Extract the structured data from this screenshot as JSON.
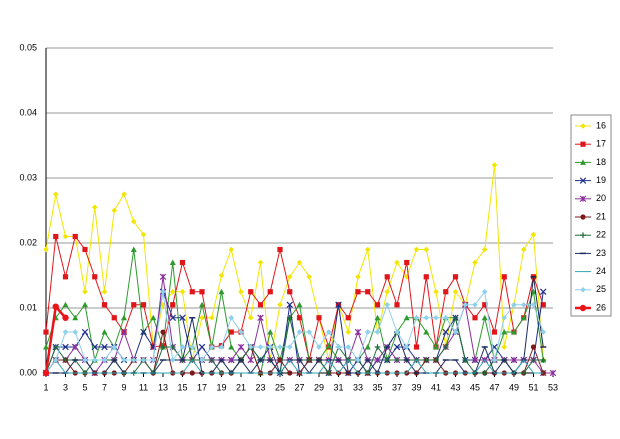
{
  "chart_data": {
    "type": "line",
    "x": [
      1,
      2,
      3,
      4,
      5,
      6,
      7,
      8,
      9,
      10,
      11,
      12,
      13,
      14,
      15,
      16,
      17,
      18,
      19,
      20,
      21,
      22,
      23,
      24,
      25,
      26,
      27,
      28,
      29,
      30,
      31,
      32,
      33,
      34,
      35,
      36,
      37,
      38,
      39,
      40,
      41,
      42,
      43,
      44,
      45,
      46,
      47,
      48,
      49,
      50,
      51,
      52,
      53
    ],
    "xlim": [
      1,
      53
    ],
    "xticks": [
      1,
      3,
      5,
      7,
      9,
      11,
      13,
      15,
      17,
      19,
      21,
      23,
      25,
      27,
      29,
      31,
      33,
      35,
      37,
      39,
      41,
      43,
      45,
      47,
      49,
      51,
      53
    ],
    "ylim": [
      0,
      0.05
    ],
    "yticks": [
      {
        "value": 0,
        "label": "0.00"
      },
      {
        "value": 0.01,
        "label": "0.01"
      },
      {
        "value": 0.02,
        "label": "0.02"
      },
      {
        "value": 0.03,
        "label": "0.03"
      },
      {
        "value": 0.04,
        "label": "0.04"
      },
      {
        "value": 0.05,
        "label": "0.05"
      }
    ],
    "grid": true,
    "legend": "right",
    "series": [
      {
        "name": "16",
        "color": "#f2e600",
        "marker": "diamond",
        "values": [
          0.019,
          0.0275,
          0.021,
          0.021,
          0.0125,
          0.0255,
          0.0125,
          0.025,
          0.0275,
          0.0233,
          0.0213,
          0.004,
          0.0105,
          0.0125,
          0.0125,
          0.002,
          0.0085,
          0.0085,
          0.015,
          0.019,
          0.0125,
          0.0085,
          0.017,
          0.002,
          0.0105,
          0.0148,
          0.017,
          0.0148,
          0.0085,
          0.002,
          0.0105,
          0.0063,
          0.0148,
          0.019,
          0.0063,
          0.0125,
          0.017,
          0.0148,
          0.019,
          0.019,
          0.0125,
          0.0042,
          0.0125,
          0.0105,
          0.017,
          0.019,
          0.032,
          0.004,
          0.0105,
          0.019,
          0.0213,
          0.002,
          null
        ]
      },
      {
        "name": "17",
        "color": "#e0161b",
        "marker": "square",
        "values": [
          0.0063,
          0.021,
          0.0148,
          0.021,
          0.019,
          0.0148,
          0.0105,
          0.0085,
          0.0063,
          0.0105,
          0.0105,
          0.004,
          0.0042,
          0.0105,
          0.017,
          0.0125,
          0.0125,
          0.004,
          0.0042,
          0.0063,
          0.0063,
          0.0125,
          0.0105,
          0.0125,
          0.019,
          0.0125,
          0.0085,
          0.002,
          0.0085,
          0.004,
          0.0105,
          0.0085,
          0.0125,
          0.0125,
          0.0105,
          0.0148,
          0.0105,
          0.017,
          0.004,
          0.0148,
          0.004,
          0.0125,
          0.0148,
          0.0105,
          0.0085,
          0.0105,
          0.0063,
          0.0148,
          0.0063,
          0.0085,
          0.0148,
          0.0105,
          null
        ]
      },
      {
        "name": "18",
        "color": "#2e9a2e",
        "marker": "triangle",
        "values": [
          0.004,
          0.0085,
          0.0105,
          0.0085,
          0.0105,
          0.002,
          0.0063,
          0.004,
          0.0085,
          0.019,
          0.0063,
          0.0085,
          0.004,
          0.017,
          0.002,
          0.004,
          0.0105,
          0.004,
          0.0125,
          0.004,
          0.002,
          0.004,
          0,
          0.0063,
          0.002,
          0.0085,
          0.0105,
          0.002,
          0.002,
          0.0042,
          0.002,
          0.002,
          0.002,
          0.004,
          0.0085,
          0.002,
          0.0063,
          0.0085,
          0.0085,
          0.0063,
          0.004,
          0.0085,
          0.0085,
          0.002,
          0.002,
          0.0085,
          0.002,
          0.0063,
          0.0063,
          0.0085,
          0.0125,
          0.002,
          null
        ]
      },
      {
        "name": "19",
        "color": "#1f2f8a",
        "marker": "x",
        "values": [
          0,
          0.004,
          0.004,
          0.004,
          0.0063,
          0.004,
          0.004,
          0.004,
          0.002,
          0.002,
          0.0063,
          0.004,
          0.0125,
          0.0085,
          0.0085,
          0.002,
          0.004,
          0.002,
          0.002,
          0.002,
          0.002,
          0.004,
          0.002,
          0.004,
          0,
          0.0105,
          0,
          0.002,
          0.002,
          0,
          0.0105,
          0,
          0.002,
          0,
          0.002,
          0.002,
          0.004,
          0.004,
          0.002,
          0.002,
          0.002,
          0.0063,
          0.0085,
          0.002,
          0.002,
          0.002,
          0.004,
          0.002,
          0.002,
          0.002,
          0.002,
          0.0125,
          null
        ]
      },
      {
        "name": "20",
        "color": "#8a2f9a",
        "marker": "star",
        "values": [
          0,
          0.002,
          0.002,
          0.004,
          0.002,
          0,
          0.002,
          0.002,
          0.0063,
          0.002,
          0.002,
          0.002,
          0.0148,
          0.004,
          0.002,
          0.002,
          0.002,
          0.002,
          0.002,
          0.002,
          0.004,
          0.002,
          0.0085,
          0.002,
          0.002,
          0.002,
          0.002,
          0.002,
          0.002,
          0.002,
          0.002,
          0.002,
          0.0063,
          0.002,
          0.002,
          0.004,
          0.002,
          0.002,
          0.002,
          0.002,
          0.002,
          0.004,
          0.0063,
          0.0105,
          0.002,
          0.002,
          0.002,
          0.002,
          0.002,
          0.002,
          0.002,
          0,
          0
        ]
      },
      {
        "name": "21",
        "color": "#7a1a1a",
        "marker": "circle",
        "values": [
          0,
          0.002,
          0.002,
          0,
          0,
          0,
          0,
          0,
          0,
          0.002,
          0.002,
          0,
          0.0063,
          0,
          0,
          0,
          0,
          0,
          0,
          0,
          0.002,
          0.004,
          0,
          0,
          0.002,
          0,
          0,
          0.002,
          0.002,
          0,
          0,
          0,
          0,
          0,
          0,
          0,
          0,
          0,
          0,
          0.002,
          0.002,
          0,
          0,
          0,
          0,
          0,
          0,
          0,
          0,
          0,
          0.004,
          0,
          null
        ]
      },
      {
        "name": "22",
        "color": "#1f6b3a",
        "marker": "plus",
        "values": [
          0,
          0.004,
          0.002,
          0.002,
          0,
          0.002,
          0.002,
          0.002,
          0,
          0,
          0.002,
          0,
          0.004,
          0.004,
          0.002,
          0.002,
          0.002,
          0.002,
          0,
          0,
          0.002,
          0.004,
          0.002,
          0.002,
          0,
          0.0085,
          0.002,
          0.002,
          0.002,
          0,
          0.004,
          0.002,
          0.002,
          0,
          0.004,
          0.002,
          0.002,
          0.002,
          0.002,
          0.002,
          0.002,
          0.004,
          0.0085,
          0.002,
          0,
          0,
          0.002,
          0.002,
          0,
          0,
          0.002,
          0.002,
          null
        ]
      },
      {
        "name": "23",
        "color": "#1a2a5e",
        "marker": "dash",
        "values": [
          0,
          0,
          0,
          0.002,
          0.002,
          0,
          0,
          0.002,
          0,
          0,
          0,
          0,
          0.002,
          0.002,
          0.002,
          0.0085,
          0,
          0,
          0.002,
          0,
          0.002,
          0,
          0.002,
          0.002,
          0,
          0.002,
          0.002,
          0,
          0.002,
          0.002,
          0.002,
          0,
          0,
          0.002,
          0,
          0.004,
          0.0063,
          0.002,
          0,
          0,
          0,
          0.002,
          0.002,
          0,
          0,
          0.004,
          0,
          0.002,
          0,
          0.002,
          0.0148,
          0.004,
          null
        ]
      },
      {
        "name": "24",
        "color": "#2fa6b0",
        "marker": "none",
        "values": [
          0,
          0.002,
          0,
          0,
          0,
          0,
          0,
          0,
          0,
          0,
          0,
          0,
          0,
          0,
          0,
          0.002,
          0,
          0,
          0,
          0,
          0,
          0,
          0,
          0,
          0,
          0.002,
          0,
          0,
          0,
          0.002,
          0,
          0.002,
          0,
          0,
          0,
          0,
          0,
          0,
          0.002,
          0,
          0,
          0,
          0,
          0,
          0,
          0.002,
          0,
          0,
          0,
          0.002,
          0,
          0,
          null
        ]
      },
      {
        "name": "25",
        "color": "#8fd0ea",
        "marker": "diamond",
        "values": [
          0,
          0.002,
          0.0063,
          0.0063,
          0.002,
          0.002,
          0.002,
          0.004,
          0.002,
          0.002,
          0.002,
          0.002,
          0.0125,
          0.002,
          0.004,
          0.004,
          0.002,
          0.004,
          0.004,
          0.0085,
          0.0063,
          0.004,
          0.004,
          0.004,
          0.004,
          0.004,
          0.0063,
          0.0063,
          0.004,
          0.0063,
          0.004,
          0.004,
          0.002,
          0.0063,
          0.0063,
          0.0105,
          0.0063,
          0.004,
          0.0085,
          0.0085,
          0.0085,
          0.0085,
          0.0063,
          0.0105,
          0.0105,
          0.0125,
          0.002,
          0.0085,
          0.0105,
          0.0105,
          0.0105,
          0.0063,
          null
        ]
      },
      {
        "name": "26",
        "color": "#e8141a",
        "marker": "circle-bold",
        "values": [
          0,
          0.0102,
          0.0085,
          null,
          null,
          null,
          null,
          null,
          null,
          null,
          null,
          null,
          null,
          null,
          null,
          null,
          null,
          null,
          null,
          null,
          null,
          null,
          null,
          null,
          null,
          null,
          null,
          null,
          null,
          null,
          null,
          null,
          null,
          null,
          null,
          null,
          null,
          null,
          null,
          null,
          null,
          null,
          null,
          null,
          null,
          null,
          null,
          null,
          null,
          null,
          null,
          null,
          null
        ]
      }
    ]
  }
}
